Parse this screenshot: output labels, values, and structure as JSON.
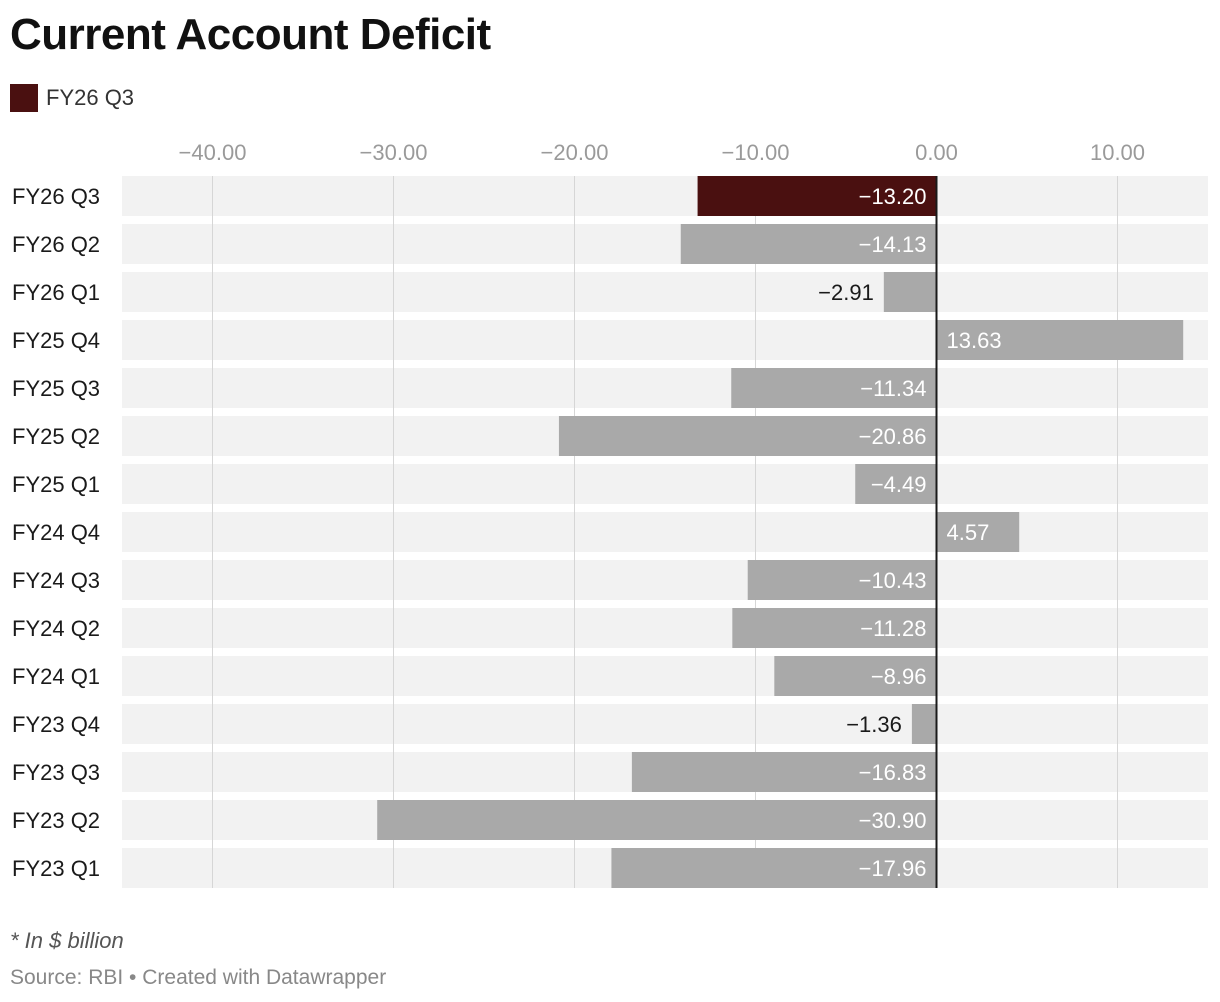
{
  "chart_data": {
    "type": "bar",
    "orientation": "horizontal",
    "title": "Current Account Deficit",
    "legend": [
      {
        "label": "FY26 Q3",
        "color": "#4a1010"
      }
    ],
    "categories": [
      "FY26 Q3",
      "FY26 Q2",
      "FY26 Q1",
      "FY25 Q4",
      "FY25 Q3",
      "FY25 Q2",
      "FY25 Q1",
      "FY24 Q4",
      "FY24 Q3",
      "FY24 Q2",
      "FY24 Q1",
      "FY23 Q4",
      "FY23 Q3",
      "FY23 Q2",
      "FY23 Q1"
    ],
    "values": [
      -13.2,
      -14.13,
      -2.91,
      13.63,
      -11.34,
      -20.86,
      -4.49,
      4.57,
      -10.43,
      -11.28,
      -8.96,
      -1.36,
      -16.83,
      -30.9,
      -17.96
    ],
    "value_labels": [
      "−13.20",
      "−14.13",
      "−2.91",
      "13.63",
      "−11.34",
      "−20.86",
      "−4.49",
      "4.57",
      "−10.43",
      "−11.28",
      "−8.96",
      "−1.36",
      "−16.83",
      "−30.90",
      "−17.96"
    ],
    "highlight_category": "FY26 Q3",
    "xlim": [
      -45,
      15
    ],
    "xticks": [
      -40,
      -30,
      -20,
      -10,
      0,
      10
    ],
    "xtick_labels": [
      "−40.00",
      "−30.00",
      "−20.00",
      "−10.00",
      "0.00",
      "10.00"
    ],
    "grid": true,
    "legend_position": "top-left",
    "note": "* In $ billion",
    "source": "Source: RBI • Created with Datawrapper"
  },
  "colors": {
    "highlight": "#4a1010",
    "bar": "#a9a9a9",
    "row_background": "#f2f2f2",
    "grid": "#d6d6d6",
    "zero_line": "#1a1a1a",
    "tick_label": "#9a9a9a",
    "label_on_bar": "#ffffff",
    "label_outside": "#1a1a1a",
    "category_label": "#1a1a1a"
  }
}
